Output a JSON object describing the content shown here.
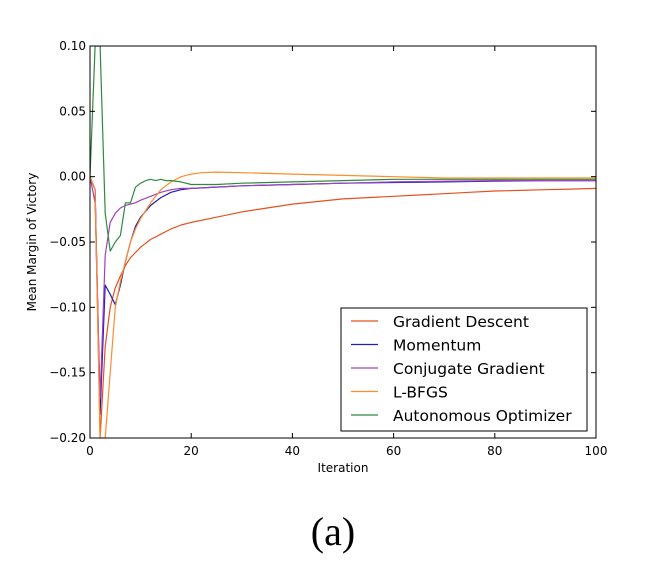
{
  "chart_data": {
    "type": "line",
    "title": "",
    "caption": "(a)",
    "xlabel": "Iteration",
    "ylabel": "Mean Margin of Victory",
    "xlim": [
      0,
      100
    ],
    "ylim": [
      -0.2,
      0.1
    ],
    "xticks": [
      0,
      20,
      40,
      60,
      80,
      100
    ],
    "yticks": [
      -0.2,
      -0.15,
      -0.1,
      -0.05,
      0.0,
      0.05,
      0.1
    ],
    "xtick_labels": [
      "0",
      "20",
      "40",
      "60",
      "80",
      "100"
    ],
    "ytick_labels": [
      "−0.20",
      "−0.15",
      "−0.10",
      "−0.05",
      "0.00",
      "0.05",
      "0.10"
    ],
    "grid": false,
    "legend_position": "lower-right",
    "series": [
      {
        "name": "Gradient Descent",
        "color": "#E8501E",
        "x": [
          0,
          1,
          2,
          3,
          4,
          5,
          6,
          7,
          8,
          9,
          10,
          12,
          14,
          16,
          18,
          20,
          25,
          30,
          35,
          40,
          45,
          50,
          55,
          60,
          65,
          70,
          75,
          80,
          85,
          90,
          95,
          100
        ],
        "y": [
          0.0,
          -0.01,
          -0.2,
          -0.13,
          -0.1,
          -0.085,
          -0.076,
          -0.068,
          -0.062,
          -0.058,
          -0.054,
          -0.048,
          -0.044,
          -0.04,
          -0.037,
          -0.035,
          -0.031,
          -0.027,
          -0.024,
          -0.021,
          -0.019,
          -0.017,
          -0.016,
          -0.015,
          -0.014,
          -0.013,
          -0.012,
          -0.011,
          -0.0105,
          -0.01,
          -0.0095,
          -0.009
        ]
      },
      {
        "name": "Momentum",
        "color": "#2020B0",
        "x": [
          0,
          1,
          2,
          3,
          4,
          5,
          6,
          7,
          8,
          9,
          10,
          12,
          14,
          16,
          18,
          20,
          25,
          30,
          40,
          50,
          60,
          70,
          80,
          90,
          100
        ],
        "y": [
          0.0,
          -0.01,
          -0.182,
          -0.083,
          -0.09,
          -0.098,
          -0.083,
          -0.065,
          -0.05,
          -0.038,
          -0.031,
          -0.022,
          -0.016,
          -0.012,
          -0.01,
          -0.009,
          -0.008,
          -0.007,
          -0.006,
          -0.005,
          -0.0045,
          -0.004,
          -0.0035,
          -0.003,
          -0.003
        ]
      },
      {
        "name": "Conjugate Gradient",
        "color": "#A040C0",
        "x": [
          0,
          1,
          2,
          3,
          4,
          5,
          6,
          7,
          8,
          9,
          10,
          12,
          14,
          16,
          18,
          20,
          25,
          30,
          40,
          50,
          60,
          70,
          80,
          90,
          100
        ],
        "y": [
          0.0,
          -0.02,
          -0.17,
          -0.06,
          -0.035,
          -0.028,
          -0.024,
          -0.022,
          -0.021,
          -0.02,
          -0.018,
          -0.015,
          -0.012,
          -0.01,
          -0.009,
          -0.009,
          -0.008,
          -0.007,
          -0.006,
          -0.005,
          -0.004,
          -0.0035,
          -0.003,
          -0.003,
          -0.003
        ]
      },
      {
        "name": "L-BFGS",
        "color": "#FF8C2A",
        "x": [
          0,
          1,
          2,
          3,
          4,
          5,
          6,
          7,
          8,
          9,
          10,
          12,
          14,
          16,
          18,
          20,
          22,
          25,
          30,
          40,
          50,
          60,
          70,
          80,
          90,
          100
        ],
        "y": [
          0.0,
          -0.01,
          -0.2,
          -0.2,
          -0.15,
          -0.1,
          -0.08,
          -0.065,
          -0.05,
          -0.04,
          -0.032,
          -0.02,
          -0.01,
          -0.004,
          0.0,
          0.002,
          0.003,
          0.0035,
          0.003,
          0.002,
          0.001,
          0.0,
          -0.001,
          -0.001,
          -0.001,
          -0.001
        ]
      },
      {
        "name": "Autonomous Optimizer",
        "color": "#2E8B3C",
        "x": [
          0,
          1,
          2,
          3,
          4,
          5,
          6,
          7,
          8,
          9,
          10,
          11,
          12,
          13,
          14,
          15,
          16,
          18,
          20,
          22,
          25,
          30,
          40,
          50,
          60,
          70,
          80,
          90,
          100
        ],
        "y": [
          0.0,
          0.1,
          0.1,
          -0.028,
          -0.057,
          -0.05,
          -0.045,
          -0.02,
          -0.02,
          -0.008,
          -0.005,
          -0.003,
          -0.002,
          -0.003,
          -0.002,
          -0.003,
          -0.003,
          -0.004,
          -0.006,
          -0.006,
          -0.006,
          -0.005,
          -0.004,
          -0.003,
          -0.002,
          -0.002,
          -0.002,
          -0.002,
          -0.002
        ]
      }
    ]
  }
}
